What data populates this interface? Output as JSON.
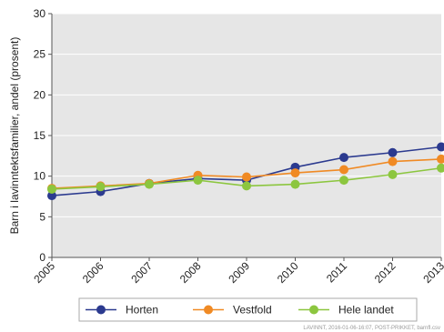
{
  "chart_data": {
    "type": "line",
    "x": [
      "2005",
      "2006",
      "2007",
      "2008",
      "2009",
      "2010",
      "2011",
      "2012",
      "2013"
    ],
    "ylabel": "Barn i lavinntektsfamilier, andel (prosent)",
    "ylim": [
      0,
      30
    ],
    "yticks": [
      "0",
      "5",
      "10",
      "15",
      "20",
      "25",
      "30"
    ],
    "grid": true,
    "legend_position": "bottom",
    "series": [
      {
        "name": "Horten",
        "color": "#2b3a8f",
        "values": [
          7.6,
          8.1,
          9.1,
          9.7,
          9.5,
          11.1,
          12.3,
          12.9,
          13.6
        ]
      },
      {
        "name": "Vestfold",
        "color": "#f08a24",
        "values": [
          8.5,
          8.8,
          9.1,
          10.1,
          9.9,
          10.4,
          10.8,
          11.8,
          12.1
        ]
      },
      {
        "name": "Hele landet",
        "color": "#8cc63f",
        "values": [
          8.4,
          8.7,
          9.0,
          9.5,
          8.8,
          9.0,
          9.5,
          10.2,
          11.0
        ]
      }
    ],
    "source_note": "LAVINNT, 2016-01-06-16:07, POST-PRIKKET, barnfl.csv"
  }
}
